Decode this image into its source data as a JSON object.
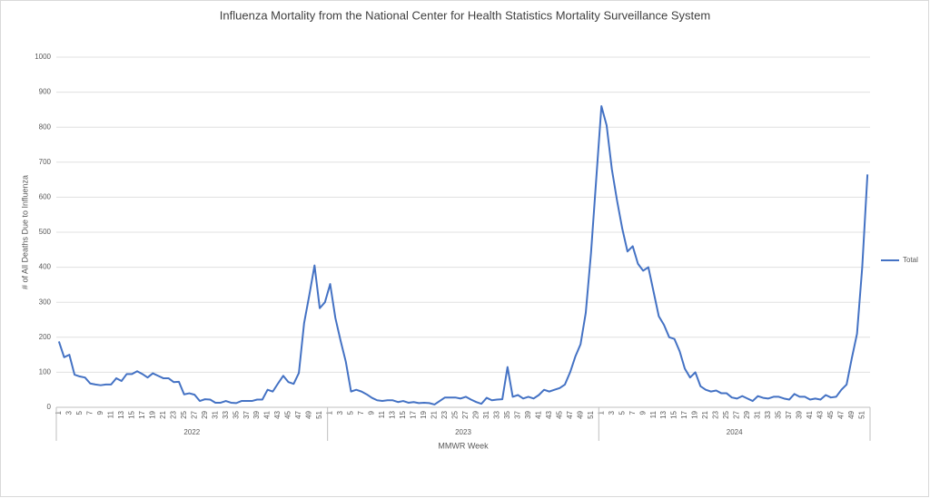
{
  "chart_data": {
    "type": "line",
    "title": "Influenza Mortality from the National Center for Health Statistics Mortality Surveillance System",
    "x_label": "MMWR Week",
    "y_label": "# of All Deaths Due to Influenza",
    "years": [
      "2022",
      "2023",
      "2024"
    ],
    "categories": [
      "1",
      null,
      "3",
      null,
      "5",
      null,
      "7",
      null,
      "9",
      null,
      "11",
      null,
      "13",
      null,
      "15",
      null,
      "17",
      null,
      "19",
      null,
      "21",
      null,
      "23",
      null,
      "25",
      null,
      "27",
      null,
      "29",
      null,
      "31",
      null,
      "33",
      null,
      "35",
      null,
      "37",
      null,
      "39",
      null,
      "41",
      null,
      "43",
      null,
      "45",
      null,
      "47",
      null,
      "49",
      null,
      "51",
      null,
      "1",
      null,
      "3",
      null,
      "5",
      null,
      "7",
      null,
      "9",
      null,
      "11",
      null,
      "13",
      null,
      "15",
      null,
      "17",
      null,
      "19",
      null,
      "21",
      null,
      "23",
      null,
      "25",
      null,
      "27",
      null,
      "29",
      null,
      "31",
      null,
      "33",
      null,
      "35",
      null,
      "37",
      null,
      "39",
      null,
      "41",
      null,
      "43",
      null,
      "45",
      null,
      "47",
      null,
      "49",
      null,
      "51",
      null,
      "1",
      null,
      "3",
      null,
      "5",
      null,
      "7",
      null,
      "9",
      null,
      "11",
      null,
      "13",
      null,
      "15",
      null,
      "17",
      null,
      "19",
      null,
      "21",
      null,
      "23",
      null,
      "25",
      null,
      "27",
      null,
      "29",
      null,
      "31",
      null,
      "33",
      null,
      "35",
      null,
      "37",
      null,
      "39",
      null,
      "41",
      null,
      "43",
      null,
      "45",
      null,
      "47",
      null,
      "49",
      null,
      "51",
      null
    ],
    "series": [
      {
        "name": "Total",
        "color": "#4472c4",
        "values": [
          188,
          143,
          150,
          93,
          88,
          85,
          68,
          65,
          63,
          65,
          65,
          83,
          75,
          95,
          95,
          103,
          95,
          85,
          97,
          90,
          83,
          83,
          72,
          73,
          37,
          40,
          36,
          18,
          23,
          22,
          13,
          13,
          18,
          13,
          12,
          18,
          18,
          18,
          22,
          22,
          50,
          45,
          68,
          90,
          72,
          67,
          98,
          240,
          320,
          405,
          283,
          300,
          352,
          255,
          190,
          130,
          45,
          50,
          45,
          37,
          27,
          20,
          18,
          20,
          20,
          15,
          18,
          13,
          15,
          12,
          13,
          12,
          8,
          18,
          28,
          28,
          28,
          25,
          30,
          22,
          15,
          10,
          27,
          20,
          22,
          23,
          115,
          30,
          35,
          25,
          30,
          25,
          35,
          50,
          45,
          50,
          55,
          65,
          100,
          145,
          180,
          270,
          440,
          650,
          860,
          805,
          680,
          590,
          510,
          445,
          460,
          410,
          390,
          400,
          330,
          260,
          235,
          200,
          195,
          160,
          110,
          85,
          100,
          60,
          50,
          45,
          48,
          40,
          40,
          28,
          25,
          32,
          25,
          18,
          32,
          27,
          25,
          30,
          30,
          25,
          22,
          38,
          30,
          30,
          22,
          25,
          22,
          35,
          28,
          30,
          50,
          65,
          140,
          210,
          400,
          665
        ]
      }
    ],
    "ylim": [
      0,
      1000
    ],
    "yticks": [
      0,
      100,
      200,
      300,
      400,
      500,
      600,
      700,
      800,
      900,
      1000
    ],
    "grid": true,
    "legend": "right"
  }
}
